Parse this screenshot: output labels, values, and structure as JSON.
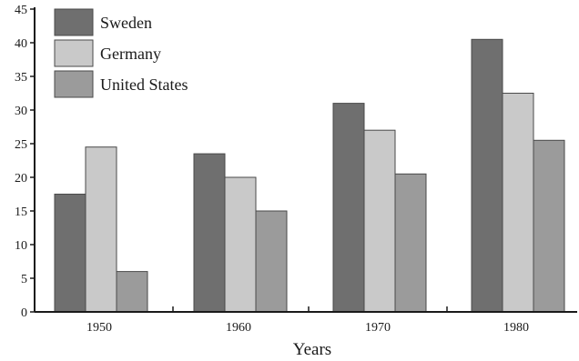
{
  "chart_data": {
    "type": "bar",
    "categories": [
      "1950",
      "1960",
      "1970",
      "1980"
    ],
    "series": [
      {
        "name": "Sweden",
        "values": [
          17.5,
          23.5,
          31,
          40.5
        ],
        "color": "#6f6f6f"
      },
      {
        "name": "Germany",
        "values": [
          24.5,
          20,
          27,
          32.5
        ],
        "color": "#c9c9c9"
      },
      {
        "name": "United States",
        "values": [
          6,
          15,
          20.5,
          25.5
        ],
        "color": "#9b9b9b"
      }
    ],
    "title": "",
    "xlabel": "Years",
    "ylabel": "",
    "ylim": [
      0,
      45
    ],
    "yticks": [
      "0",
      "5",
      "10",
      "15",
      "20",
      "25",
      "30",
      "35",
      "40",
      "45"
    ],
    "grid": false,
    "legend_position": "top-left"
  }
}
